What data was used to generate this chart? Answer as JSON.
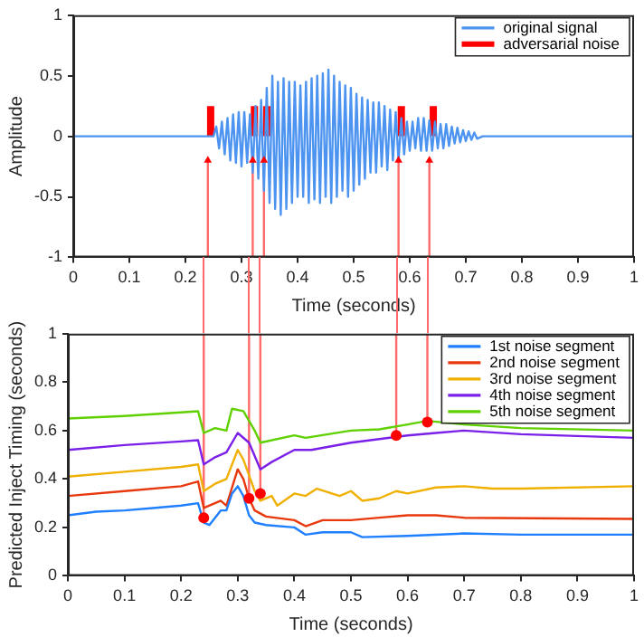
{
  "chart_data": [
    {
      "type": "line",
      "xlabel": "Time (seconds)",
      "ylabel": "Amplitude",
      "xlim": [
        0,
        1
      ],
      "xticks": [
        0,
        0.1,
        0.2,
        0.3,
        0.4,
        0.5,
        0.6,
        0.7,
        0.8,
        0.9,
        1
      ],
      "ylim": [
        -1,
        1
      ],
      "yticks": [
        -1,
        -0.5,
        0,
        0.5,
        1
      ],
      "grid": false,
      "legend": "top right",
      "series": [
        {
          "name": "original signal",
          "color": "#4d94f0",
          "x": [
            0,
            0.25,
            0.255,
            0.26,
            0.265,
            0.27,
            0.275,
            0.28,
            0.285,
            0.29,
            0.295,
            0.3,
            0.305,
            0.31,
            0.315,
            0.32,
            0.325,
            0.33,
            0.335,
            0.34,
            0.345,
            0.35,
            0.355,
            0.36,
            0.365,
            0.37,
            0.375,
            0.38,
            0.385,
            0.39,
            0.395,
            0.4,
            0.405,
            0.41,
            0.415,
            0.42,
            0.425,
            0.43,
            0.435,
            0.44,
            0.445,
            0.45,
            0.455,
            0.46,
            0.465,
            0.47,
            0.475,
            0.48,
            0.485,
            0.49,
            0.495,
            0.5,
            0.505,
            0.51,
            0.515,
            0.52,
            0.525,
            0.53,
            0.535,
            0.54,
            0.545,
            0.55,
            0.555,
            0.56,
            0.565,
            0.57,
            0.575,
            0.58,
            0.585,
            0.59,
            0.595,
            0.6,
            0.605,
            0.61,
            0.615,
            0.62,
            0.625,
            0.63,
            0.635,
            0.64,
            0.645,
            0.65,
            0.655,
            0.66,
            0.665,
            0.67,
            0.675,
            0.68,
            0.685,
            0.69,
            0.695,
            0.7,
            0.705,
            0.71,
            0.715,
            0.72,
            0.73,
            1
          ],
          "values": [
            0,
            0,
            0.08,
            -0.1,
            0.12,
            -0.15,
            0.15,
            -0.2,
            0.18,
            -0.22,
            0.2,
            -0.25,
            0.2,
            -0.22,
            0.18,
            -0.3,
            0.25,
            -0.35,
            0.3,
            -0.45,
            0.4,
            -0.55,
            0.5,
            -0.6,
            0.45,
            -0.65,
            0.48,
            -0.6,
            0.45,
            -0.55,
            0.45,
            -0.5,
            0.42,
            -0.5,
            0.45,
            -0.55,
            0.48,
            -0.52,
            0.5,
            -0.55,
            0.52,
            -0.5,
            0.55,
            -0.55,
            0.5,
            -0.5,
            0.45,
            -0.45,
            0.42,
            -0.5,
            0.4,
            -0.45,
            0.35,
            -0.4,
            0.32,
            -0.35,
            0.3,
            -0.3,
            0.28,
            -0.3,
            0.28,
            -0.25,
            0.25,
            -0.28,
            0.22,
            -0.2,
            0.2,
            -0.2,
            0.15,
            -0.15,
            0.12,
            -0.12,
            0.12,
            -0.1,
            0.15,
            -0.12,
            0.15,
            -0.12,
            0.13,
            -0.12,
            0.12,
            -0.1,
            0.1,
            -0.1,
            0.1,
            -0.08,
            0.08,
            -0.06,
            0.07,
            -0.05,
            0.05,
            -0.04,
            0.04,
            -0.03,
            0.03,
            -0.02,
            0,
            0
          ]
        },
        {
          "name": "adversarial noise",
          "color": "#ff0000",
          "x": [
            0.245,
            0.245
          ],
          "values": [
            0,
            0.25
          ]
        },
        {
          "color": "#ff0000",
          "x": [
            0.323,
            0.323
          ],
          "values": [
            0,
            0.25
          ]
        },
        {
          "color": "#ff0000",
          "x": [
            0.345,
            0.345
          ],
          "values": [
            0,
            0.25
          ]
        },
        {
          "color": "#ff0000",
          "x": [
            0.585,
            0.585
          ],
          "values": [
            0,
            0.25
          ]
        },
        {
          "color": "#ff0000",
          "x": [
            0.642,
            0.642
          ],
          "values": [
            0,
            0.25
          ]
        },
        {
          "color": "#ff6a6a",
          "x": [
            0.24,
            0.24
          ],
          "values": [
            -1,
            -0.2
          ]
        },
        {
          "color": "#ff6a6a",
          "x": [
            0.32,
            0.32
          ],
          "values": [
            -1,
            -0.2
          ]
        },
        {
          "color": "#ff6a6a",
          "x": [
            0.34,
            0.34
          ],
          "values": [
            -1,
            -0.2
          ]
        },
        {
          "color": "#ff6a6a",
          "x": [
            0.58,
            0.58
          ],
          "values": [
            -1,
            -0.2
          ]
        },
        {
          "color": "#ff6a6a",
          "x": [
            0.635,
            0.635
          ],
          "values": [
            -1,
            -0.2
          ]
        },
        {
          "type": "scatter",
          "color": "#ff0000",
          "marker": "triangle",
          "x": [
            0.24,
            0.32,
            0.34,
            0.58,
            0.635
          ],
          "values": [
            -0.2,
            -0.2,
            -0.2,
            -0.2,
            -0.2
          ]
        }
      ]
    },
    {
      "type": "line",
      "xlabel": "Time (seconds)",
      "ylabel": "Predicted Inject Timing (seconds)",
      "xlim": [
        0,
        1
      ],
      "xticks": [
        0,
        0.1,
        0.2,
        0.3,
        0.4,
        0.5,
        0.6,
        0.7,
        0.8,
        0.9,
        1
      ],
      "ylim": [
        0,
        1
      ],
      "yticks": [
        0,
        0.2,
        0.4,
        0.6,
        0.8,
        1
      ],
      "grid": false,
      "legend": "top right",
      "series": [
        {
          "name": "1st noise segment",
          "color": "#1f7fff",
          "x": [
            0,
            0.05,
            0.1,
            0.15,
            0.2,
            0.23,
            0.24,
            0.25,
            0.27,
            0.28,
            0.29,
            0.3,
            0.31,
            0.32,
            0.33,
            0.35,
            0.4,
            0.42,
            0.45,
            0.5,
            0.52,
            0.6,
            0.7,
            0.8,
            1
          ],
          "values": [
            0.25,
            0.265,
            0.27,
            0.28,
            0.29,
            0.3,
            0.22,
            0.21,
            0.27,
            0.27,
            0.34,
            0.37,
            0.33,
            0.25,
            0.22,
            0.21,
            0.2,
            0.17,
            0.18,
            0.18,
            0.16,
            0.165,
            0.175,
            0.17,
            0.17
          ]
        },
        {
          "name": "2nd noise segment",
          "color": "#e8380d",
          "x": [
            0,
            0.1,
            0.2,
            0.23,
            0.24,
            0.27,
            0.28,
            0.3,
            0.31,
            0.32,
            0.33,
            0.35,
            0.4,
            0.42,
            0.45,
            0.5,
            0.55,
            0.6,
            0.65,
            0.7,
            1
          ],
          "values": [
            0.33,
            0.35,
            0.37,
            0.39,
            0.28,
            0.31,
            0.29,
            0.44,
            0.4,
            0.32,
            0.27,
            0.245,
            0.23,
            0.205,
            0.23,
            0.23,
            0.24,
            0.25,
            0.25,
            0.24,
            0.235
          ]
        },
        {
          "name": "3rd noise segment",
          "color": "#f0b000",
          "x": [
            0,
            0.1,
            0.2,
            0.23,
            0.24,
            0.26,
            0.28,
            0.3,
            0.31,
            0.33,
            0.34,
            0.36,
            0.37,
            0.4,
            0.42,
            0.44,
            0.48,
            0.5,
            0.52,
            0.55,
            0.58,
            0.6,
            0.65,
            0.7,
            0.75,
            0.8,
            1
          ],
          "values": [
            0.41,
            0.43,
            0.45,
            0.46,
            0.35,
            0.38,
            0.4,
            0.52,
            0.48,
            0.35,
            0.31,
            0.33,
            0.29,
            0.34,
            0.33,
            0.36,
            0.33,
            0.35,
            0.31,
            0.32,
            0.35,
            0.34,
            0.365,
            0.37,
            0.36,
            0.36,
            0.37
          ]
        },
        {
          "name": "4th noise segment",
          "color": "#7b20e8",
          "x": [
            0,
            0.1,
            0.2,
            0.23,
            0.24,
            0.26,
            0.28,
            0.3,
            0.32,
            0.34,
            0.36,
            0.4,
            0.43,
            0.5,
            0.55,
            0.6,
            0.65,
            0.7,
            0.8,
            1
          ],
          "values": [
            0.52,
            0.54,
            0.555,
            0.56,
            0.46,
            0.49,
            0.51,
            0.59,
            0.55,
            0.44,
            0.47,
            0.52,
            0.52,
            0.55,
            0.565,
            0.58,
            0.59,
            0.6,
            0.585,
            0.57
          ]
        },
        {
          "name": "5th noise segment",
          "color": "#5fd000",
          "x": [
            0,
            0.1,
            0.2,
            0.23,
            0.24,
            0.26,
            0.28,
            0.29,
            0.31,
            0.33,
            0.34,
            0.4,
            0.42,
            0.5,
            0.55,
            0.6,
            0.635,
            0.7,
            0.8,
            1
          ],
          "values": [
            0.65,
            0.66,
            0.675,
            0.68,
            0.59,
            0.61,
            0.6,
            0.69,
            0.68,
            0.6,
            0.55,
            0.58,
            0.57,
            0.6,
            0.605,
            0.625,
            0.64,
            0.625,
            0.61,
            0.6
          ]
        },
        {
          "color": "#ff6a6a",
          "x": [
            0.24,
            0.24
          ],
          "values": [
            0.24,
            1
          ]
        },
        {
          "color": "#ff6a6a",
          "x": [
            0.32,
            0.32
          ],
          "values": [
            0.32,
            1
          ]
        },
        {
          "color": "#ff6a6a",
          "x": [
            0.34,
            0.34
          ],
          "values": [
            0.34,
            1
          ]
        },
        {
          "color": "#ff6a6a",
          "x": [
            0.58,
            0.58
          ],
          "values": [
            0.58,
            1
          ]
        },
        {
          "color": "#ff6a6a",
          "x": [
            0.635,
            0.635
          ],
          "values": [
            0.635,
            1
          ]
        },
        {
          "type": "scatter",
          "color": "#ff0000",
          "marker": "circle",
          "x": [
            0.24,
            0.32,
            0.34,
            0.58,
            0.635
          ],
          "values": [
            0.24,
            0.32,
            0.34,
            0.58,
            0.635
          ]
        }
      ]
    }
  ]
}
